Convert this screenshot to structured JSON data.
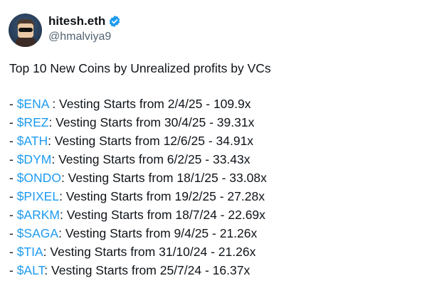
{
  "author": {
    "name": "hitesh.eth",
    "handle": "@hmalviya9",
    "verified": true,
    "badge_color": "#1d9bf0"
  },
  "tweet": {
    "title": "Top 10 New Coins by Unrealized profits by VCs",
    "items": [
      {
        "ticker": "$ENA",
        "sep": " : ",
        "text": "Vesting Starts from 2/4/25 - 109.9x"
      },
      {
        "ticker": "$REZ",
        "sep": ": ",
        "text": "Vesting Starts from 30/4/25 - 39.31x"
      },
      {
        "ticker": "$ATH",
        "sep": ": ",
        "text": "Vesting Starts from 12/6/25 - 34.91x"
      },
      {
        "ticker": "$DYM",
        "sep": ": ",
        "text": "Vesting Starts from 6/2/25 - 33.43x"
      },
      {
        "ticker": "$ONDO",
        "sep": ": ",
        "text": "Vesting Starts from 18/1/25 - 33.08x"
      },
      {
        "ticker": "$PIXEL",
        "sep": ": ",
        "text": "Vesting Starts from 19/2/25 - 27.28x"
      },
      {
        "ticker": "$ARKM",
        "sep": ": ",
        "text": "Vesting Starts from 18/7/24 - 22.69x"
      },
      {
        "ticker": "$SAGA",
        "sep": ": ",
        "text": "Vesting Starts from 9/4/25 - 21.26x"
      },
      {
        "ticker": "$TIA",
        "sep": ": ",
        "text": "Vesting Starts from 31/10/24 - 21.26x"
      },
      {
        "ticker": "$ALT",
        "sep": ": ",
        "text": "Vesting Starts from 25/7/24 - 16.37x"
      }
    ]
  }
}
